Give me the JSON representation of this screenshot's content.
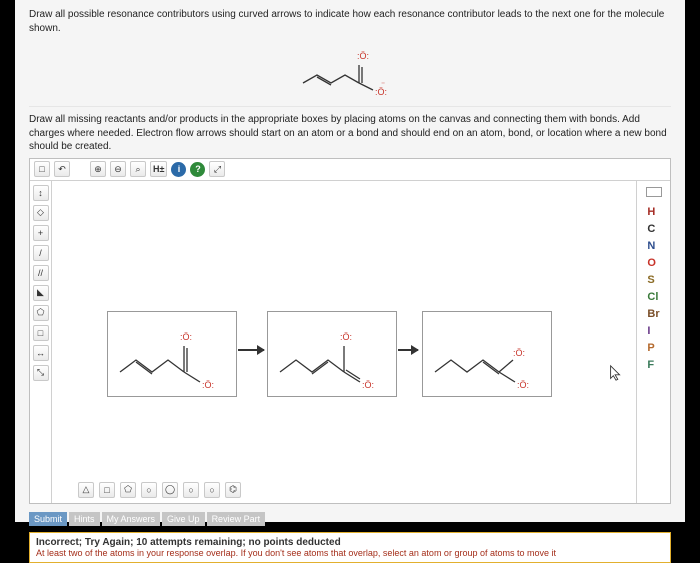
{
  "instr1": "Draw all possible resonance contributors using curved arrows to indicate how each resonance contributor leads to the next one for the molecule shown.",
  "instr2": "Draw all missing reactants and/or products in the appropriate boxes by placing atoms on the canvas and connecting them with bonds. Add charges where needed. Electron flow arrows should start on an atom or a bond and should end on an atom, bond, or location where a new bond should be created.",
  "toolbar_top": {
    "new": "□",
    "undo": "↶",
    "zoom_in": "⊕",
    "zoom_out": "⊖",
    "search": "⌕",
    "h_toggle": "H±",
    "info": "i",
    "help": "?",
    "expand": "⤢"
  },
  "info_bg": "#2b6aa8",
  "help_bg": "#2f8a3a",
  "toolbar_left": {
    "move": "↕",
    "select": "◇",
    "add": "+",
    "bond": "/",
    "dbl": "//",
    "wedge": "◣",
    "ring": "⬠",
    "erase": "□",
    "chain": "↔",
    "frag": "⤡"
  },
  "elements": [
    {
      "sym": "H",
      "cls": "H-red"
    },
    {
      "sym": "C",
      "cls": "C-blk"
    },
    {
      "sym": "N",
      "cls": "N-blue"
    },
    {
      "sym": "O",
      "cls": "O-red"
    },
    {
      "sym": "S",
      "cls": "S-brn"
    },
    {
      "sym": "Cl",
      "cls": "Cl-grn"
    },
    {
      "sym": "Br",
      "cls": "Br-brn"
    },
    {
      "sym": "I",
      "cls": "I-pur"
    },
    {
      "sym": "P",
      "cls": "P-orange"
    },
    {
      "sym": "F",
      "cls": "F-grn"
    }
  ],
  "bottom_icons": [
    "△",
    "□",
    "⬠",
    "○",
    "◯",
    "○",
    "○",
    "⌬"
  ],
  "actions": {
    "submit": "Submit",
    "hints": "Hints",
    "answer": "My Answers",
    "giveup": "Give Up",
    "review": "Review Part"
  },
  "feedback": {
    "title": "Incorrect; Try Again; 10 attempts remaining; no points deducted",
    "sub": "At least two of the atoms in your response overlap. If you don't see atoms that overlap, select an atom or group of atoms to move it"
  },
  "o_labels": {
    "top": ":Ö:",
    "btm": ":Ö:",
    "neg": "⁻"
  }
}
